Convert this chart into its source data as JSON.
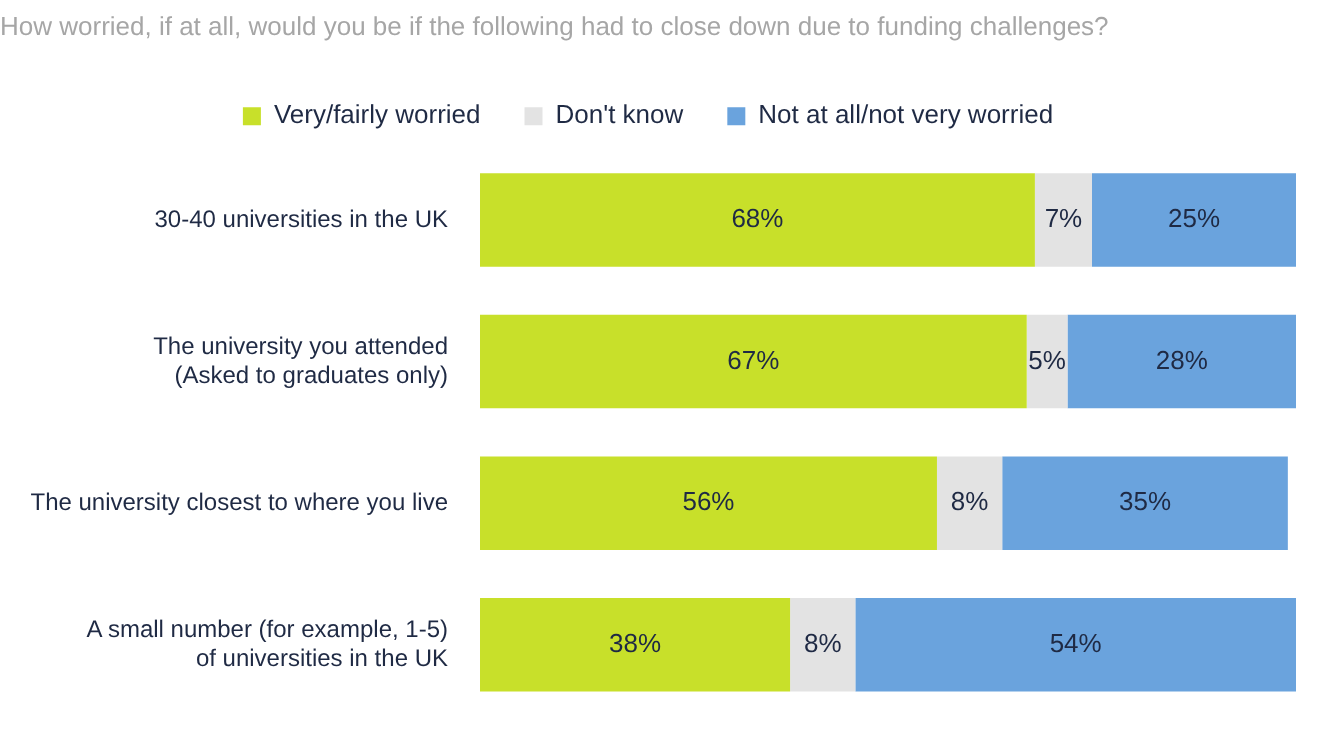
{
  "chart_data": {
    "type": "bar",
    "orientation": "horizontal",
    "stacked": true,
    "tick_labels": "y",
    "legend": "top",
    "title": "How worried, if at all, would you be if the following had to close down due to funding challenges?",
    "categories": [
      "30-40 universities in the UK",
      "The university you attended\n(Asked to graduates only)",
      "The university closest to where you live",
      "A small number (for example, 1-5)\nof universities in the UK"
    ],
    "series": [
      {
        "name": "Very/fairly worried",
        "color": "#c8e02a",
        "values": [
          68,
          67,
          56,
          38
        ],
        "value_labels": [
          "68%",
          "67%",
          "56%",
          "38%"
        ]
      },
      {
        "name": "Don't know",
        "color": "#e3e3e3",
        "values": [
          7,
          5,
          8,
          8
        ],
        "value_labels": [
          "7%",
          "5%",
          "8%",
          "8%"
        ]
      },
      {
        "name": "Not at all/not very worried",
        "color": "#6aa3dd",
        "values": [
          25,
          28,
          35,
          54
        ],
        "value_labels": [
          "25%",
          "28%",
          "35%",
          "54%"
        ]
      }
    ]
  }
}
